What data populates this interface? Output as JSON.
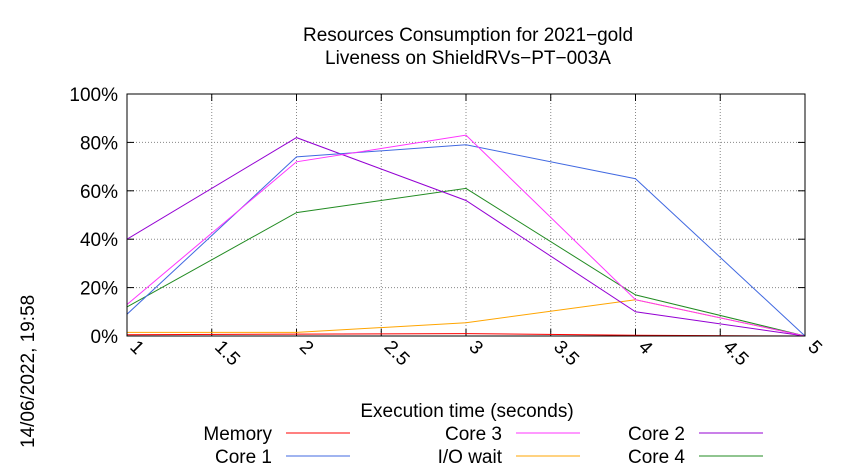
{
  "chart_data": {
    "type": "line",
    "title": "Resources Consumption for 2021−gold",
    "subtitle": "Liveness on ShieldRVs−PT−003A",
    "xlabel": "Execution time (seconds)",
    "ylabel": "",
    "timestamp": "14/06/2022, 19:58",
    "xlim": [
      1,
      5
    ],
    "ylim": [
      0,
      100
    ],
    "x_ticks": [
      "1",
      "1.5",
      "2",
      "2.5",
      "3",
      "3.5",
      "4",
      "4.5",
      "5"
    ],
    "x_tick_values": [
      1,
      1.5,
      2,
      2.5,
      3,
      3.5,
      4,
      4.5,
      5
    ],
    "y_ticks": [
      "0%",
      "20%",
      "40%",
      "60%",
      "80%",
      "100%"
    ],
    "y_tick_values": [
      0,
      20,
      40,
      60,
      80,
      100
    ],
    "grid": true,
    "legend_position": "bottom",
    "x": [
      1,
      2,
      3,
      4,
      5
    ],
    "series": [
      {
        "name": "Memory",
        "color": "#ff0000",
        "values": [
          0.5,
          0.8,
          1.0,
          0.3,
          0
        ]
      },
      {
        "name": "Core 1",
        "color": "#4169e1",
        "values": [
          9,
          74,
          79,
          65,
          0
        ]
      },
      {
        "name": "Core 3",
        "color": "#ff33ff",
        "values": [
          13,
          72,
          83,
          15,
          0
        ]
      },
      {
        "name": "I/O wait",
        "color": "#ffa500",
        "values": [
          1.5,
          1.5,
          5.5,
          15,
          0
        ]
      },
      {
        "name": "Core 2",
        "color": "#9400d3",
        "values": [
          40,
          82,
          56,
          10,
          0
        ]
      },
      {
        "name": "Core 4",
        "color": "#228b22",
        "values": [
          12,
          51,
          61,
          17,
          0
        ]
      }
    ]
  }
}
